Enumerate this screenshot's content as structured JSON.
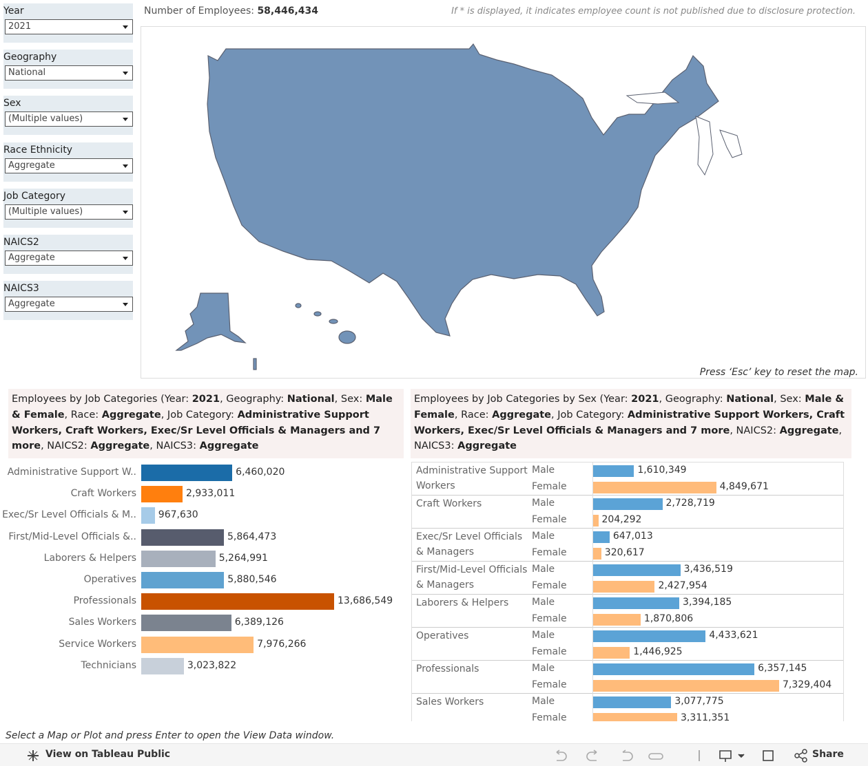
{
  "filters": [
    {
      "label": "Year",
      "value": "2021"
    },
    {
      "label": "Geography",
      "value": "National"
    },
    {
      "label": "Sex",
      "value": "(Multiple values)"
    },
    {
      "label": "Race Ethnicity",
      "value": "Aggregate"
    },
    {
      "label": "Job Category",
      "value": "(Multiple values)"
    },
    {
      "label": "NAICS2",
      "value": "Aggregate"
    },
    {
      "label": "NAICS3",
      "value": "Aggregate"
    }
  ],
  "header": {
    "label": "Number of Employees:",
    "value": "58,446,434",
    "note": "If * is displayed, it indicates employee count is not published due to disclosure protection."
  },
  "map": {
    "hint": "Press ‘Esc’ key to reset the map."
  },
  "chart_data": [
    {
      "type": "bar",
      "title": [
        "Employees by Job Categories (Year: ",
        "2021",
        ", Geography: ",
        "National",
        ", Sex: ",
        "Male & Female",
        ", Race: ",
        "Aggregate",
        ", Job Category: ",
        "Administrative Support Workers, Craft Workers, Exec/Sr Level Officials & Managers and 7 more",
        ", NAICS2: ",
        "Aggregate",
        ", NAICS3: ",
        "Aggregate"
      ],
      "categories": [
        "Administrative Support W..",
        "Craft Workers",
        "Exec/Sr Level Officials & M..",
        "First/Mid-Level Officials &..",
        "Laborers & Helpers",
        "Operatives",
        "Professionals",
        "Sales Workers",
        "Service Workers",
        "Technicians"
      ],
      "values": [
        6460020,
        2933011,
        967630,
        5864473,
        5264991,
        5880546,
        13686549,
        6389126,
        7976266,
        3023822
      ],
      "value_labels": [
        "6,460,020",
        "2,933,011",
        "967,630",
        "5,864,473",
        "5,264,991",
        "5,880,546",
        "13,686,549",
        "6,389,126",
        "7,976,266",
        "3,023,822"
      ],
      "colors": [
        "#1b6ca8",
        "#ff7f0e",
        "#a6cbe8",
        "#575c6d",
        "#a8b0bc",
        "#5fa2d0",
        "#c85200",
        "#7b838f",
        "#ffbc79",
        "#c8d0da"
      ]
    },
    {
      "type": "grouped_bar",
      "title": [
        "Employees by Job Categories by Sex (Year: ",
        "2021",
        ", Geography: ",
        "National",
        ", Sex: ",
        "Male & Female",
        ", Race: ",
        "Aggregate",
        ", Job Category: ",
        "Administrative Support Workers, Craft Workers, Exec/Sr Level Officials & Managers and 7 more",
        ", NAICS2: ",
        "Aggregate",
        ", NAICS3: ",
        "Aggregate"
      ],
      "categories": [
        "Administrative Support Workers",
        "Craft Workers",
        "Exec/Sr Level Officials & Managers",
        "First/Mid-Level Officials & Managers",
        "Laborers & Helpers",
        "Operatives",
        "Professionals",
        "Sales Workers"
      ],
      "series": [
        {
          "name": "Male",
          "color": "#5ba3d6",
          "values": [
            1610349,
            2728719,
            647013,
            3436519,
            3394185,
            4433621,
            6357145,
            3077775
          ],
          "value_labels": [
            "1,610,349",
            "2,728,719",
            "647,013",
            "3,436,519",
            "3,394,185",
            "4,433,621",
            "6,357,145",
            "3,077,775"
          ]
        },
        {
          "name": "Female",
          "color": "#ffbb7a",
          "values": [
            4849671,
            204292,
            320617,
            2427954,
            1870806,
            1446925,
            7329404,
            3311351
          ],
          "value_labels": [
            "4,849,671",
            "204,292",
            "320,617",
            "2,427,954",
            "1,870,806",
            "1,446,925",
            "7,329,404",
            "3,311,351"
          ]
        }
      ]
    }
  ],
  "footer": {
    "hint": "Select a Map or Plot and press Enter to open the View Data window.",
    "link": "View on Tableau Public",
    "share": "Share"
  }
}
